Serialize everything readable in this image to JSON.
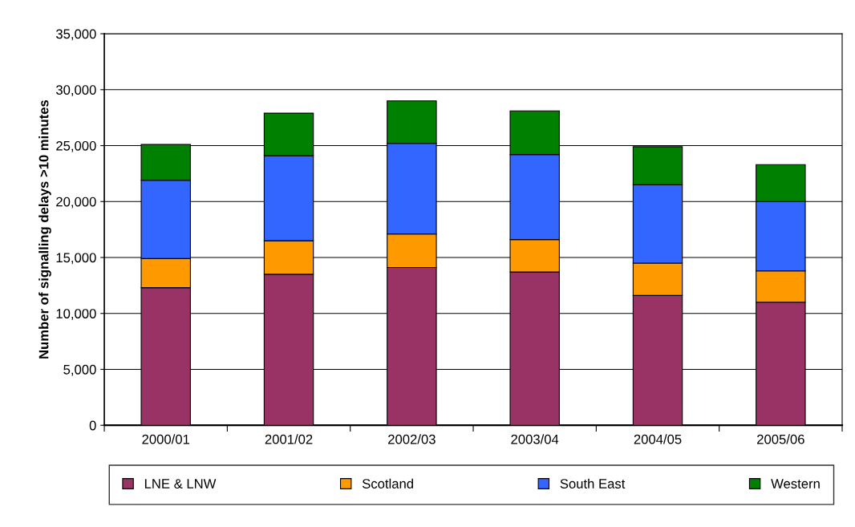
{
  "chart_data": {
    "type": "bar",
    "stacked": true,
    "ylabel": "Number of signalling delays >10 minutes",
    "categories": [
      "2000/01",
      "2001/02",
      "2002/03",
      "2003/04",
      "2004/05",
      "2005/06"
    ],
    "series": [
      {
        "name": "LNE & LNW",
        "color": "#993366",
        "values": [
          12300,
          13500,
          14100,
          13700,
          11600,
          11000
        ]
      },
      {
        "name": "Scotland",
        "color": "#ff9900",
        "values": [
          2600,
          3000,
          3000,
          2900,
          2900,
          2800
        ]
      },
      {
        "name": "South East",
        "color": "#3366ff",
        "values": [
          7000,
          7600,
          8100,
          7600,
          7000,
          6200
        ]
      },
      {
        "name": "Western",
        "color": "#008000",
        "values": [
          3200,
          3800,
          3800,
          3900,
          3400,
          3300
        ]
      }
    ],
    "ylim": [
      0,
      35000
    ],
    "yticks": [
      {
        "value": 0,
        "label": "0"
      },
      {
        "value": 5000,
        "label": "5,000"
      },
      {
        "value": 10000,
        "label": "10,000"
      },
      {
        "value": 15000,
        "label": "15,000"
      },
      {
        "value": 20000,
        "label": "20,000"
      },
      {
        "value": 25000,
        "label": "25,000"
      },
      {
        "value": 30000,
        "label": "30,000"
      },
      {
        "value": 35000,
        "label": "35,000"
      }
    ],
    "grid": "y",
    "legend": "bottom"
  }
}
